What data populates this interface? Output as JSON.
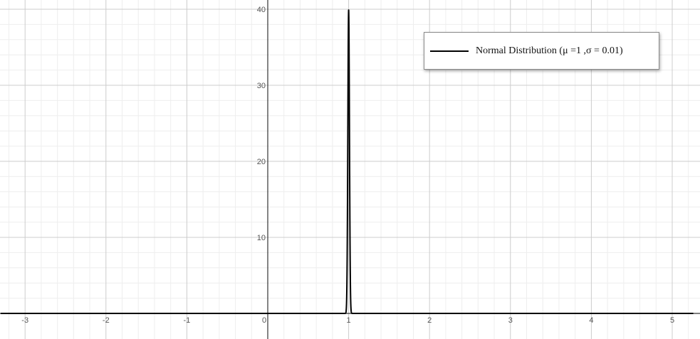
{
  "chart_data": {
    "type": "line",
    "title": "",
    "xlabel": "",
    "ylabel": "",
    "xlim": [
      -3.3,
      5.3
    ],
    "ylim": [
      -0.5,
      41
    ],
    "grid": true,
    "x_ticks": [
      "-3",
      "-2",
      "-1",
      "0",
      "1",
      "2",
      "3",
      "4",
      "5"
    ],
    "y_ticks": [
      "10",
      "20",
      "30",
      "40"
    ],
    "legend": {
      "position": "top-right",
      "entries": [
        "Normal Distribution (μ =1 ,σ = 0.01)"
      ]
    },
    "series": [
      {
        "name": "Normal Distribution (μ =1 ,σ = 0.01)",
        "function": "normal_pdf",
        "mu": 1,
        "sigma": 0.01,
        "peak": 39.89,
        "color": "#000000"
      }
    ]
  }
}
